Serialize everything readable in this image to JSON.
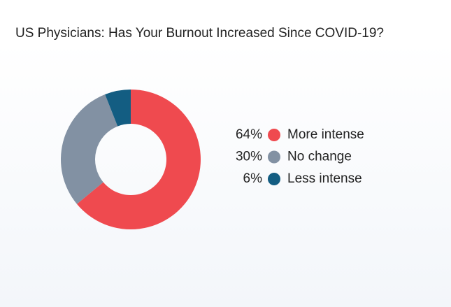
{
  "chart_data": {
    "type": "donut",
    "title": "US Physicians: Has Your Burnout Increased Since COVID-19?",
    "categories": [
      "More intense",
      "No change",
      "Less intense"
    ],
    "values": [
      64,
      30,
      6
    ],
    "value_labels": [
      "64%",
      "30%",
      "6%"
    ],
    "colors": [
      "#ef4a4f",
      "#8291a3",
      "#135d82"
    ]
  }
}
